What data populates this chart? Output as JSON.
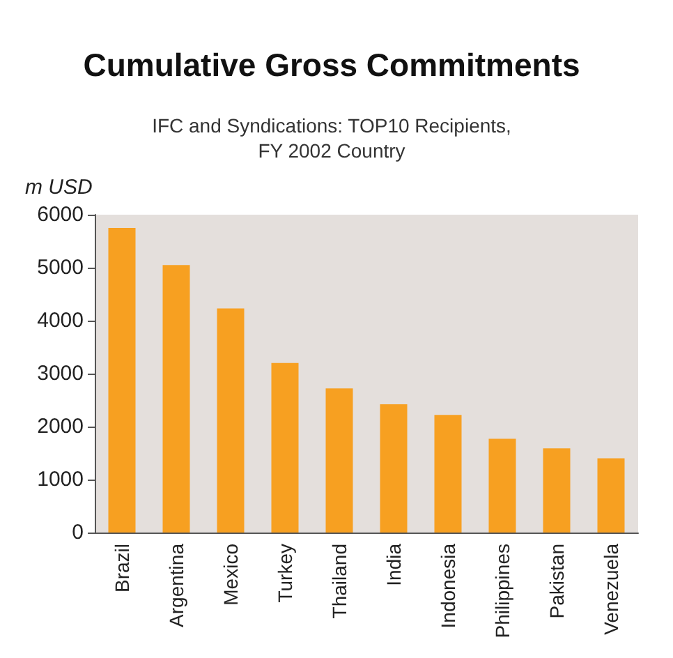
{
  "chart_data": {
    "type": "bar",
    "title": "Cumulative Gross Commitments",
    "subtitle": "IFC and Syndications: TOP10 Recipients,\nFY 2002 Country",
    "ylabel": "m USD",
    "categories": [
      "Brazil",
      "Argentina",
      "Mexico",
      "Turkey",
      "Thailand",
      "India",
      "Indonesia",
      "Philippines",
      "Pakistan",
      "Venezuela"
    ],
    "values": [
      5750,
      5050,
      4230,
      3200,
      2720,
      2420,
      2220,
      1770,
      1590,
      1400
    ],
    "color": "#f7a021",
    "ylim": [
      0,
      6000
    ],
    "yticks": [
      0,
      1000,
      2000,
      3000,
      4000,
      5000,
      6000
    ],
    "grid": false
  }
}
